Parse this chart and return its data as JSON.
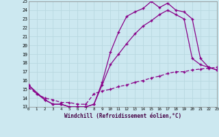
{
  "xlabel": "Windchill (Refroidissement éolien,°C)",
  "xlim": [
    0,
    23
  ],
  "ylim": [
    13,
    25
  ],
  "xticks": [
    0,
    1,
    2,
    3,
    4,
    5,
    6,
    7,
    8,
    9,
    10,
    11,
    12,
    13,
    14,
    15,
    16,
    17,
    18,
    19,
    20,
    21,
    22,
    23
  ],
  "yticks": [
    13,
    14,
    15,
    16,
    17,
    18,
    19,
    20,
    21,
    22,
    23,
    24,
    25
  ],
  "bg_color": "#cce8f0",
  "line_color": "#880088",
  "grid_color": "#b8d8e0",
  "line1_x": [
    0,
    1,
    2,
    3,
    4,
    5,
    6,
    7,
    8,
    9,
    10,
    11,
    12,
    13,
    14,
    15,
    16,
    17,
    18,
    19,
    20,
    21,
    22,
    23
  ],
  "line1_y": [
    15.5,
    14.5,
    13.8,
    13.3,
    13.3,
    13.0,
    13.0,
    13.0,
    13.3,
    15.8,
    19.2,
    21.5,
    23.3,
    23.8,
    24.2,
    25.0,
    24.3,
    24.8,
    24.0,
    23.8,
    23.0,
    18.5,
    17.5,
    17.2
  ],
  "line2_x": [
    0,
    2,
    3,
    4,
    5,
    6,
    7,
    8,
    9,
    10,
    11,
    12,
    13,
    14,
    15,
    16,
    17,
    18,
    19,
    20,
    21,
    22,
    23
  ],
  "line2_y": [
    15.5,
    13.8,
    13.3,
    13.3,
    13.0,
    13.0,
    13.0,
    13.3,
    15.5,
    17.8,
    19.0,
    20.2,
    21.3,
    22.2,
    22.8,
    23.5,
    24.0,
    23.5,
    23.0,
    18.5,
    17.8,
    17.5,
    17.2
  ],
  "line3_x": [
    0,
    1,
    2,
    3,
    4,
    5,
    6,
    7,
    8,
    9,
    10,
    11,
    12,
    13,
    14,
    15,
    16,
    17,
    18,
    19,
    20,
    21,
    22,
    23
  ],
  "line3_y": [
    15.2,
    14.5,
    14.0,
    13.8,
    13.5,
    13.5,
    13.3,
    13.3,
    14.5,
    14.8,
    15.0,
    15.3,
    15.5,
    15.8,
    16.0,
    16.3,
    16.5,
    16.8,
    17.0,
    17.0,
    17.2,
    17.3,
    17.4,
    17.5
  ],
  "marker": "+"
}
